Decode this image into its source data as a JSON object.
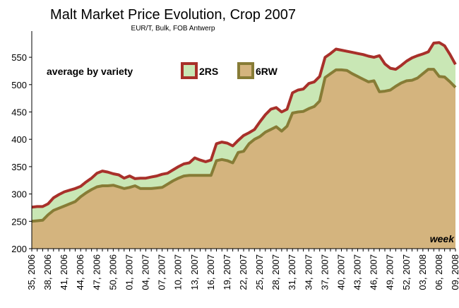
{
  "chart_data": {
    "type": "area",
    "title": "Malt Market Price Evolution, Crop 2007",
    "subtitle": "EUR/T, Bulk, FOB Antwerp",
    "x_label": "week",
    "legend_title": "average by variety",
    "categories": [
      "35, 2006",
      null,
      null,
      "38, 2006",
      null,
      null,
      "41, 2006",
      null,
      null,
      "44, 2006",
      null,
      null,
      "47, 2006",
      null,
      null,
      "50, 2006",
      null,
      null,
      "01, 2007",
      null,
      null,
      "04, 2007",
      null,
      null,
      "07, 2007",
      null,
      null,
      "10, 2007",
      null,
      null,
      "13, 2007",
      null,
      null,
      "16, 2007",
      null,
      null,
      "19, 2007",
      null,
      null,
      "22, 2007",
      null,
      null,
      "25, 2007",
      null,
      null,
      "28, 2007",
      null,
      null,
      "31, 2007",
      null,
      null,
      "34, 2007",
      null,
      null,
      "37, 2007",
      null,
      null,
      "40, 2007",
      null,
      null,
      "43, 2007",
      null,
      null,
      "46, 2007",
      null,
      null,
      "49, 2007",
      null,
      null,
      "52, 2007",
      null,
      null,
      "03, 2008",
      null,
      null,
      "06, 2008",
      null,
      null,
      "09, 2008"
    ],
    "series": [
      {
        "name": "2RS",
        "color": "#a8302a",
        "fill": "#c9e7b5",
        "values": [
          276,
          277,
          277,
          282,
          293,
          299,
          304,
          307,
          310,
          314,
          322,
          329,
          338,
          342,
          340,
          337,
          335,
          329,
          333,
          328,
          329,
          329,
          331,
          333,
          336,
          338,
          344,
          350,
          355,
          357,
          366,
          362,
          359,
          362,
          392,
          395,
          393,
          388,
          398,
          407,
          412,
          418,
          432,
          445,
          455,
          458,
          450,
          455,
          485,
          490,
          492,
          502,
          505,
          515,
          550,
          557,
          565,
          563,
          561,
          559,
          557,
          555,
          552,
          550,
          553,
          538,
          530,
          528,
          535,
          543,
          549,
          553,
          556,
          560,
          576,
          577,
          571,
          555,
          537
        ]
      },
      {
        "name": "6RW",
        "color": "#877c36",
        "fill": "#d4b47e",
        "values": [
          250,
          251,
          252,
          262,
          270,
          274,
          278,
          282,
          286,
          295,
          302,
          308,
          313,
          315,
          315,
          316,
          313,
          310,
          312,
          315,
          310,
          310,
          310,
          311,
          312,
          318,
          324,
          329,
          333,
          334,
          334,
          334,
          334,
          334,
          361,
          363,
          361,
          357,
          376,
          378,
          392,
          400,
          405,
          413,
          418,
          423,
          415,
          424,
          448,
          450,
          451,
          456,
          460,
          470,
          513,
          520,
          527,
          527,
          526,
          520,
          515,
          510,
          505,
          507,
          487,
          488,
          490,
          497,
          503,
          507,
          508,
          512,
          520,
          528,
          528,
          515,
          514,
          505,
          495
        ]
      }
    ],
    "ylim": [
      200,
      585
    ],
    "yticks": [
      200,
      250,
      300,
      350,
      400,
      450,
      500,
      550
    ],
    "grid": false
  }
}
